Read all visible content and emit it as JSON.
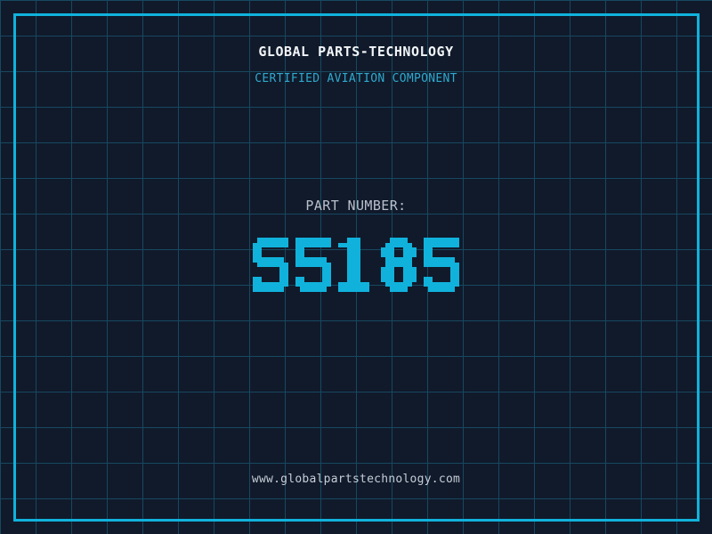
{
  "header": {
    "title": "GLOBAL PARTS-TECHNOLOGY",
    "subtitle": "CERTIFIED AVIATION COMPONENT"
  },
  "part": {
    "label": "PART NUMBER:",
    "value": "S5185"
  },
  "footer": {
    "url": "www.globalpartstechnology.com"
  },
  "colors": {
    "background": "#101a2b",
    "grid_line": "#17485f",
    "border": "#10b2dc",
    "title": "#f2f5f8",
    "subtitle": "#2fa9cd",
    "label": "#b9c0cb",
    "part_number": "#10b2dc",
    "footer": "#c5cdd6"
  }
}
